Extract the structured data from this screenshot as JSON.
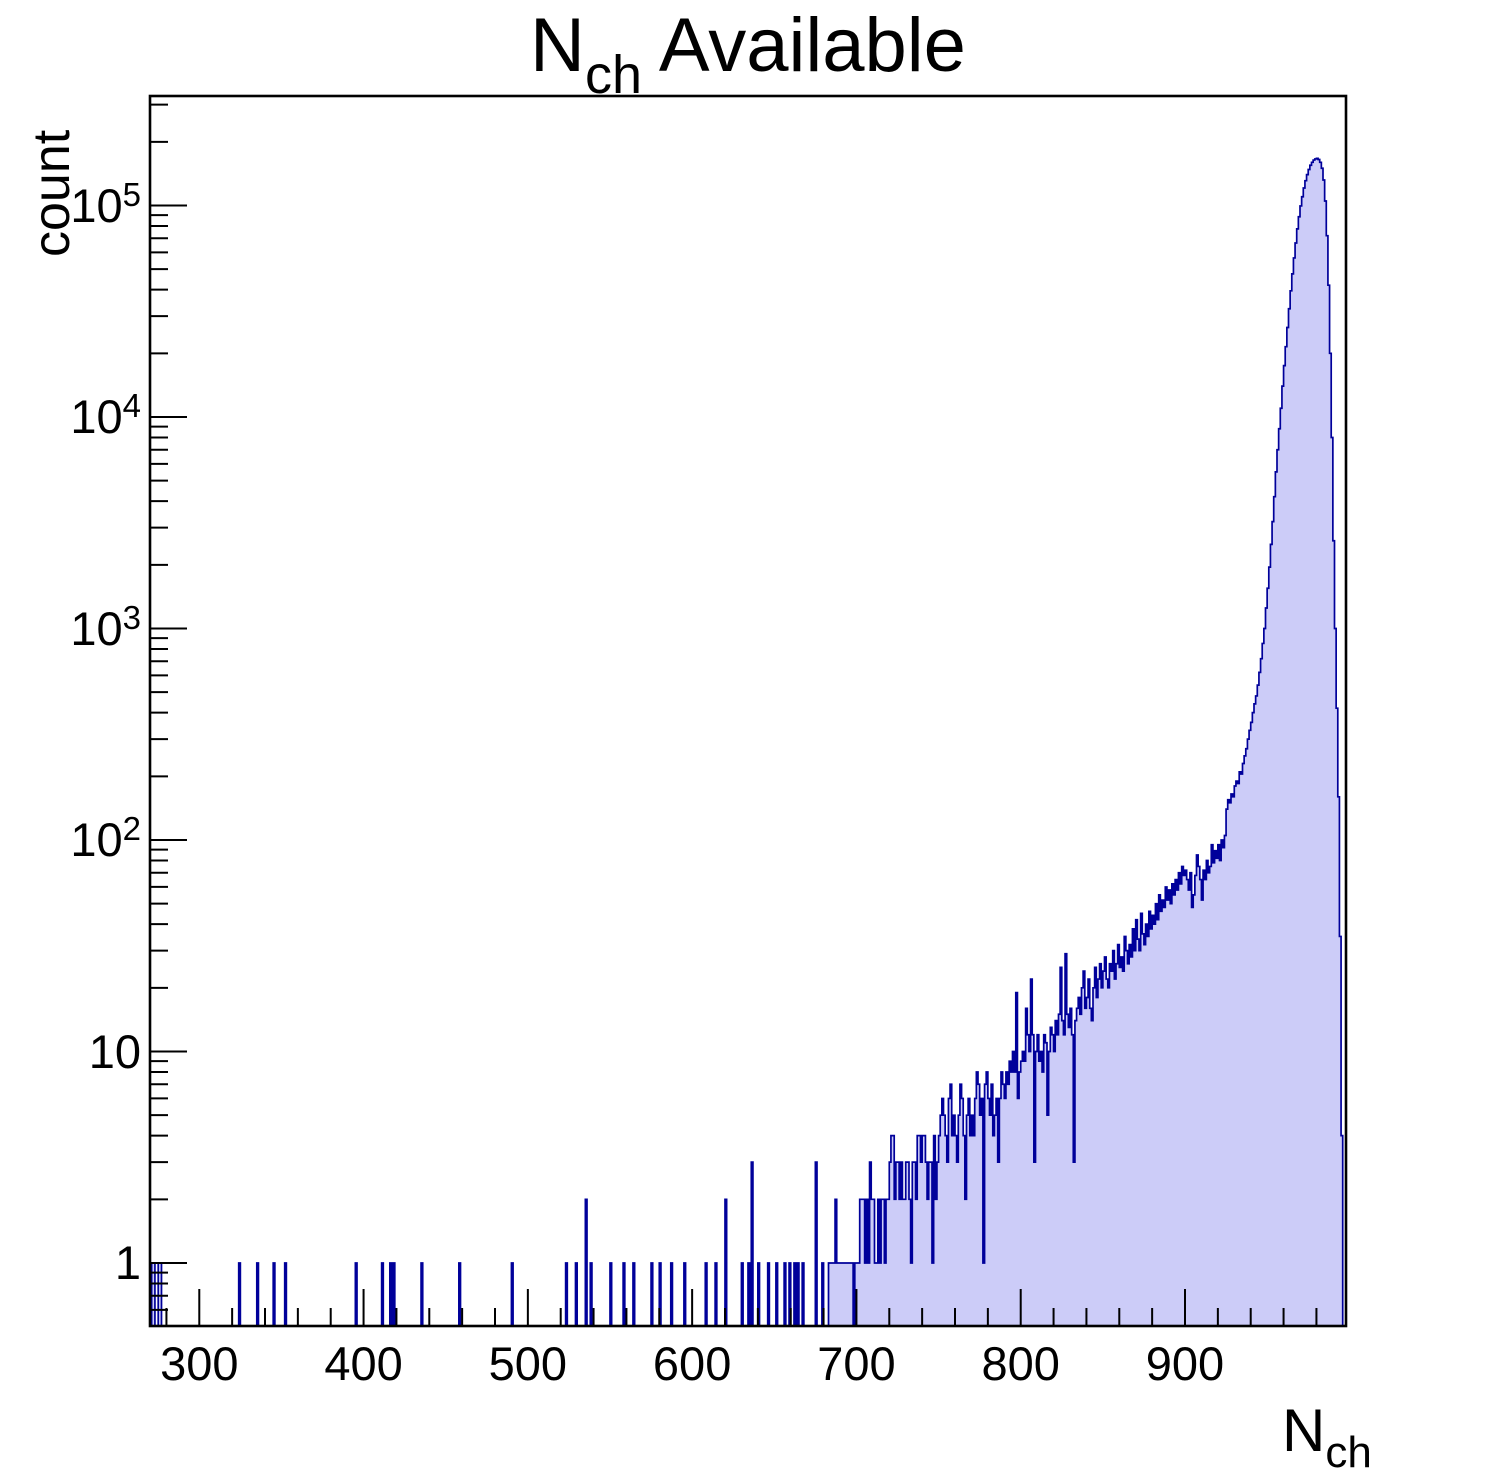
{
  "title": {
    "base": "N",
    "sub": "ch",
    "rest": " Available"
  },
  "y_axis": {
    "label": "count",
    "scale": "log",
    "min": 0.5,
    "max": 330000,
    "major_ticks": [
      {
        "value": 1,
        "base": "1",
        "exp": ""
      },
      {
        "value": 10,
        "base": "10",
        "exp": ""
      },
      {
        "value": 100,
        "base": "10",
        "exp": "2"
      },
      {
        "value": 1000,
        "base": "10",
        "exp": "3"
      },
      {
        "value": 10000,
        "base": "10",
        "exp": "4"
      },
      {
        "value": 100000,
        "base": "10",
        "exp": "5"
      }
    ]
  },
  "x_axis": {
    "label_base": "N",
    "label_sub": "ch",
    "min": 270,
    "max": 998,
    "major_ticks": [
      300,
      400,
      500,
      600,
      700,
      800,
      900
    ],
    "minor_tick_step": 20
  },
  "colors": {
    "fill": "#ccccf8",
    "line": "#00009a",
    "frame": "#000000",
    "background": "#ffffff"
  },
  "chart_data": {
    "type": "bar",
    "title": "N_ch Available",
    "xlabel": "N_ch",
    "ylabel": "count",
    "x_bin_width": 1,
    "xlim": [
      270,
      998
    ],
    "ylim": [
      0.5,
      330000
    ],
    "y_scale": "log",
    "bins": [
      [
        271,
        1
      ],
      [
        272,
        1
      ],
      [
        275,
        1
      ],
      [
        276,
        1
      ],
      [
        324,
        1
      ],
      [
        335,
        1
      ],
      [
        345,
        1
      ],
      [
        352,
        1
      ],
      [
        395,
        1
      ],
      [
        411,
        1
      ],
      [
        416,
        1
      ],
      [
        418,
        1
      ],
      [
        435,
        1
      ],
      [
        458,
        1
      ],
      [
        490,
        1
      ],
      [
        523,
        1
      ],
      [
        529,
        1
      ],
      [
        535,
        2
      ],
      [
        538,
        1
      ],
      [
        550,
        1
      ],
      [
        558,
        1
      ],
      [
        564,
        1
      ],
      [
        575,
        1
      ],
      [
        580,
        1
      ],
      [
        587,
        1
      ],
      [
        595,
        1
      ],
      [
        608,
        1
      ],
      [
        614,
        1
      ],
      [
        620,
        2
      ],
      [
        630,
        1
      ],
      [
        634,
        1
      ],
      [
        636,
        3
      ],
      [
        640,
        1
      ],
      [
        646,
        1
      ],
      [
        651,
        1
      ],
      [
        656,
        1
      ],
      [
        659,
        1
      ],
      [
        662,
        1
      ],
      [
        664,
        1
      ],
      [
        667,
        1
      ],
      [
        675,
        3
      ],
      [
        679,
        1
      ],
      [
        683,
        1
      ],
      [
        684,
        1
      ],
      [
        685,
        1
      ],
      [
        686,
        1
      ],
      [
        687,
        2
      ],
      [
        688,
        1
      ],
      [
        689,
        1
      ],
      [
        690,
        1
      ],
      [
        691,
        1
      ],
      [
        692,
        1
      ],
      [
        693,
        1
      ],
      [
        694,
        1
      ],
      [
        695,
        1
      ],
      [
        696,
        1
      ],
      [
        697,
        1
      ],
      [
        699,
        1
      ],
      [
        700,
        1
      ],
      [
        701,
        1
      ],
      [
        702,
        2
      ],
      [
        703,
        2
      ],
      [
        704,
        2
      ],
      [
        705,
        1
      ],
      [
        706,
        2
      ],
      [
        707,
        1
      ],
      [
        708,
        3
      ],
      [
        709,
        2
      ],
      [
        710,
        2
      ],
      [
        711,
        1
      ],
      [
        712,
        1
      ],
      [
        713,
        2
      ],
      [
        714,
        1
      ],
      [
        715,
        2
      ],
      [
        716,
        2
      ],
      [
        717,
        1
      ],
      [
        718,
        2
      ],
      [
        719,
        2
      ],
      [
        720,
        3
      ],
      [
        721,
        4
      ],
      [
        722,
        4
      ],
      [
        723,
        2
      ],
      [
        724,
        3
      ],
      [
        725,
        3
      ],
      [
        726,
        2
      ],
      [
        727,
        3
      ],
      [
        728,
        2
      ],
      [
        729,
        2
      ],
      [
        730,
        3
      ],
      [
        731,
        3
      ],
      [
        732,
        2
      ],
      [
        733,
        1
      ],
      [
        734,
        3
      ],
      [
        735,
        3
      ],
      [
        736,
        2
      ],
      [
        737,
        4
      ],
      [
        738,
        4
      ],
      [
        739,
        3
      ],
      [
        740,
        4
      ],
      [
        741,
        4
      ],
      [
        742,
        3
      ],
      [
        743,
        2
      ],
      [
        744,
        3
      ],
      [
        745,
        3
      ],
      [
        746,
        1
      ],
      [
        747,
        4
      ],
      [
        748,
        2
      ],
      [
        749,
        3
      ],
      [
        750,
        4
      ],
      [
        751,
        5
      ],
      [
        752,
        6
      ],
      [
        753,
        5
      ],
      [
        754,
        4
      ],
      [
        755,
        3
      ],
      [
        756,
        6
      ],
      [
        757,
        7
      ],
      [
        758,
        4
      ],
      [
        759,
        5
      ],
      [
        760,
        4
      ],
      [
        761,
        3
      ],
      [
        762,
        5
      ],
      [
        763,
        7
      ],
      [
        764,
        6
      ],
      [
        765,
        4
      ],
      [
        766,
        2
      ],
      [
        767,
        5
      ],
      [
        768,
        6
      ],
      [
        769,
        4
      ],
      [
        770,
        5
      ],
      [
        771,
        4
      ],
      [
        772,
        6
      ],
      [
        773,
        8
      ],
      [
        774,
        7
      ],
      [
        775,
        5
      ],
      [
        776,
        6
      ],
      [
        777,
        1
      ],
      [
        778,
        7
      ],
      [
        779,
        8
      ],
      [
        780,
        6
      ],
      [
        781,
        5
      ],
      [
        782,
        7
      ],
      [
        783,
        4
      ],
      [
        784,
        5
      ],
      [
        785,
        6
      ],
      [
        786,
        3
      ],
      [
        787,
        6
      ],
      [
        788,
        8
      ],
      [
        789,
        7
      ],
      [
        790,
        6
      ],
      [
        791,
        8
      ],
      [
        792,
        7
      ],
      [
        793,
        9
      ],
      [
        794,
        8
      ],
      [
        795,
        10
      ],
      [
        796,
        8
      ],
      [
        797,
        19
      ],
      [
        798,
        6
      ],
      [
        799,
        8
      ],
      [
        800,
        9
      ],
      [
        801,
        10
      ],
      [
        802,
        9
      ],
      [
        803,
        16
      ],
      [
        804,
        12
      ],
      [
        805,
        10
      ],
      [
        806,
        22
      ],
      [
        807,
        12
      ],
      [
        808,
        3
      ],
      [
        809,
        10
      ],
      [
        810,
        12
      ],
      [
        811,
        9
      ],
      [
        812,
        10
      ],
      [
        813,
        8
      ],
      [
        814,
        12
      ],
      [
        815,
        11
      ],
      [
        816,
        5
      ],
      [
        817,
        10
      ],
      [
        818,
        13
      ],
      [
        819,
        12
      ],
      [
        820,
        10
      ],
      [
        821,
        14
      ],
      [
        822,
        12
      ],
      [
        823,
        15
      ],
      [
        824,
        25
      ],
      [
        825,
        14
      ],
      [
        826,
        12
      ],
      [
        827,
        29
      ],
      [
        828,
        15
      ],
      [
        829,
        13
      ],
      [
        830,
        16
      ],
      [
        831,
        12
      ],
      [
        832,
        3
      ],
      [
        833,
        14
      ],
      [
        834,
        16
      ],
      [
        835,
        18
      ],
      [
        836,
        15
      ],
      [
        837,
        20
      ],
      [
        838,
        24
      ],
      [
        839,
        16
      ],
      [
        840,
        18
      ],
      [
        841,
        22
      ],
      [
        842,
        16
      ],
      [
        843,
        14
      ],
      [
        844,
        20
      ],
      [
        845,
        25
      ],
      [
        846,
        18
      ],
      [
        847,
        22
      ],
      [
        848,
        26
      ],
      [
        849,
        20
      ],
      [
        850,
        24
      ],
      [
        851,
        28
      ],
      [
        852,
        22
      ],
      [
        853,
        20
      ],
      [
        854,
        26
      ],
      [
        855,
        24
      ],
      [
        856,
        30
      ],
      [
        857,
        22
      ],
      [
        858,
        26
      ],
      [
        859,
        32
      ],
      [
        860,
        25
      ],
      [
        861,
        28
      ],
      [
        862,
        24
      ],
      [
        863,
        35
      ],
      [
        864,
        30
      ],
      [
        865,
        26
      ],
      [
        866,
        32
      ],
      [
        867,
        28
      ],
      [
        868,
        38
      ],
      [
        869,
        30
      ],
      [
        870,
        42
      ],
      [
        871,
        34
      ],
      [
        872,
        30
      ],
      [
        873,
        45
      ],
      [
        874,
        36
      ],
      [
        875,
        32
      ],
      [
        876,
        40
      ],
      [
        877,
        35
      ],
      [
        878,
        46
      ],
      [
        879,
        38
      ],
      [
        880,
        44
      ],
      [
        881,
        40
      ],
      [
        882,
        50
      ],
      [
        883,
        42
      ],
      [
        884,
        55
      ],
      [
        885,
        46
      ],
      [
        886,
        52
      ],
      [
        887,
        48
      ],
      [
        888,
        60
      ],
      [
        889,
        52
      ],
      [
        890,
        58
      ],
      [
        891,
        50
      ],
      [
        892,
        62
      ],
      [
        893,
        55
      ],
      [
        894,
        65
      ],
      [
        895,
        58
      ],
      [
        896,
        70
      ],
      [
        897,
        62
      ],
      [
        898,
        75
      ],
      [
        899,
        68
      ],
      [
        900,
        72
      ],
      [
        901,
        65
      ],
      [
        902,
        58
      ],
      [
        903,
        70
      ],
      [
        904,
        48
      ],
      [
        905,
        55
      ],
      [
        906,
        68
      ],
      [
        907,
        85
      ],
      [
        908,
        75
      ],
      [
        909,
        65
      ],
      [
        910,
        52
      ],
      [
        911,
        72
      ],
      [
        912,
        65
      ],
      [
        913,
        80
      ],
      [
        914,
        70
      ],
      [
        915,
        75
      ],
      [
        916,
        95
      ],
      [
        917,
        78
      ],
      [
        918,
        89
      ],
      [
        919,
        82
      ],
      [
        920,
        95
      ],
      [
        921,
        80
      ],
      [
        922,
        100
      ],
      [
        923,
        92
      ],
      [
        924,
        105
      ],
      [
        925,
        140
      ],
      [
        926,
        155
      ],
      [
        927,
        150
      ],
      [
        928,
        165
      ],
      [
        929,
        160
      ],
      [
        930,
        180
      ],
      [
        931,
        190
      ],
      [
        932,
        185
      ],
      [
        933,
        210
      ],
      [
        934,
        205
      ],
      [
        935,
        230
      ],
      [
        936,
        250
      ],
      [
        937,
        270
      ],
      [
        938,
        300
      ],
      [
        939,
        330
      ],
      [
        940,
        360
      ],
      [
        941,
        400
      ],
      [
        942,
        440
      ],
      [
        943,
        480
      ],
      [
        944,
        540
      ],
      [
        945,
        620
      ],
      [
        946,
        720
      ],
      [
        947,
        850
      ],
      [
        948,
        1000
      ],
      [
        949,
        1250
      ],
      [
        950,
        1550
      ],
      [
        951,
        1950
      ],
      [
        952,
        2500
      ],
      [
        953,
        3200
      ],
      [
        954,
        4200
      ],
      [
        955,
        5500
      ],
      [
        956,
        7000
      ],
      [
        957,
        8800
      ],
      [
        958,
        11000
      ],
      [
        959,
        14000
      ],
      [
        960,
        17500
      ],
      [
        961,
        21500
      ],
      [
        962,
        26500
      ],
      [
        963,
        32500
      ],
      [
        964,
        39500
      ],
      [
        965,
        47500
      ],
      [
        966,
        56500
      ],
      [
        967,
        66500
      ],
      [
        968,
        77500
      ],
      [
        969,
        88500
      ],
      [
        970,
        99500
      ],
      [
        971,
        110000
      ],
      [
        972,
        121000
      ],
      [
        973,
        131000
      ],
      [
        974,
        140000
      ],
      [
        975,
        148000
      ],
      [
        976,
        155000
      ],
      [
        977,
        160000
      ],
      [
        978,
        164000
      ],
      [
        979,
        166000
      ],
      [
        980,
        167000
      ],
      [
        981,
        165000
      ],
      [
        982,
        160000
      ],
      [
        983,
        150000
      ],
      [
        984,
        132000
      ],
      [
        985,
        105000
      ],
      [
        986,
        72000
      ],
      [
        987,
        42000
      ],
      [
        988,
        20000
      ],
      [
        989,
        8000
      ],
      [
        990,
        2600
      ],
      [
        991,
        1000
      ],
      [
        992,
        420
      ],
      [
        993,
        160
      ],
      [
        994,
        35
      ],
      [
        995,
        4
      ]
    ]
  }
}
